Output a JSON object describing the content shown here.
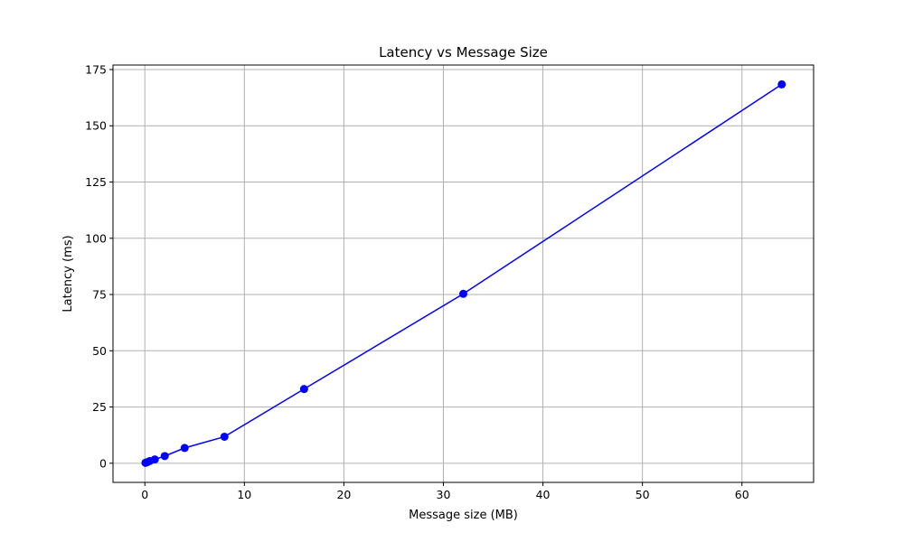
{
  "chart_data": {
    "type": "line",
    "title": "Latency vs Message Size",
    "xlabel": "Message size (MB)",
    "ylabel": "Latency (ms)",
    "xlim": [
      -3.2,
      67.2
    ],
    "ylim": [
      -8.5,
      177
    ],
    "xticks": [
      0,
      10,
      20,
      30,
      40,
      50,
      60
    ],
    "yticks": [
      0,
      25,
      50,
      75,
      100,
      125,
      150,
      175
    ],
    "grid": true,
    "series": [
      {
        "color": "#0000ff",
        "marker": "circle",
        "x": [
          0.0625,
          0.125,
          0.25,
          0.5,
          1,
          2,
          4,
          8,
          16,
          32,
          64
        ],
        "y": [
          0.2,
          0.3,
          0.5,
          1.0,
          1.7,
          3.2,
          6.8,
          11.8,
          33.0,
          75.3,
          168.4
        ]
      }
    ]
  }
}
